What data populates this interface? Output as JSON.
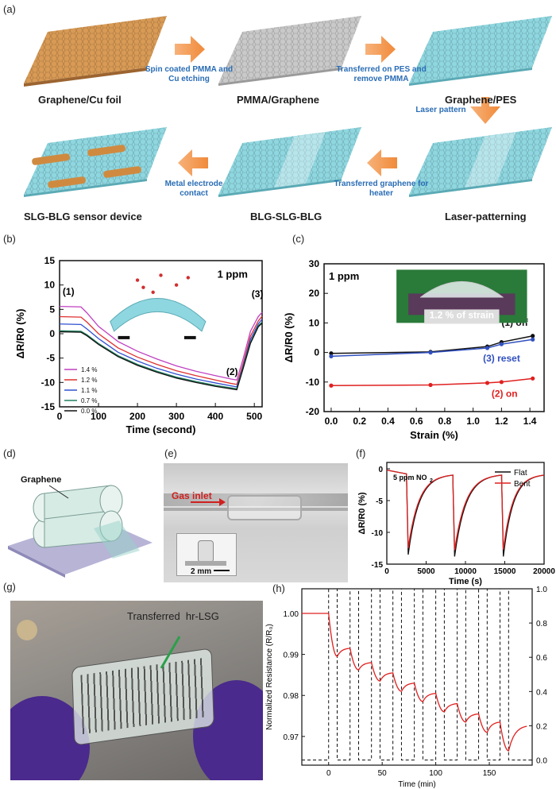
{
  "panel_labels": {
    "a": "(a)",
    "b": "(b)",
    "c": "(c)",
    "d": "(d)",
    "e": "(e)",
    "f": "(f)",
    "g": "(g)",
    "h": "(h)"
  },
  "panel_a": {
    "steps": [
      "Graphene/Cu foil",
      "PMMA/Graphene",
      "Graphene/PES",
      "Laser-patterning",
      "BLG-SLG-BLG",
      "SLG-BLG sensor device"
    ],
    "arrows": [
      "Spin coated PMMA and Cu etching",
      "Transferred on PES and remove PMMA",
      "Laser pattern",
      "Transferred graphene for heater",
      "Metal electrode contact"
    ]
  },
  "panel_b": {
    "conc_label": "1 ppm",
    "markers": [
      "(1)",
      "(2)",
      "(3)"
    ],
    "chart_data": {
      "type": "line",
      "xlabel": "Time (second)",
      "ylabel": "ΔR/R0 (%)",
      "xlim": [
        0,
        520
      ],
      "ylim": [
        -15,
        15
      ],
      "xticks": [
        0,
        100,
        200,
        300,
        400,
        500
      ],
      "yticks": [
        -15,
        -10,
        -5,
        0,
        5,
        10,
        15
      ],
      "x": [
        0,
        55,
        70,
        100,
        150,
        200,
        250,
        300,
        350,
        400,
        440,
        455,
        470,
        490,
        510,
        520
      ],
      "series": [
        {
          "name": "1.4 %",
          "color": "#c040c0",
          "values": [
            5.6,
            5.5,
            4.3,
            1.5,
            -1.6,
            -3.6,
            -5.2,
            -6.6,
            -7.7,
            -8.6,
            -9.3,
            -9.5,
            -5.5,
            0.5,
            3.5,
            4.4
          ]
        },
        {
          "name": "1.2 %",
          "color": "#e03030",
          "values": [
            3.5,
            3.4,
            2.4,
            0.0,
            -2.9,
            -4.8,
            -6.3,
            -7.6,
            -8.6,
            -9.5,
            -10.2,
            -10.4,
            -6.5,
            -0.5,
            2.6,
            3.6
          ]
        },
        {
          "name": "1.1 %",
          "color": "#3050d0",
          "values": [
            2.0,
            1.9,
            1.0,
            -1.0,
            -3.8,
            -5.6,
            -7.1,
            -8.3,
            -9.3,
            -10.1,
            -10.7,
            -10.9,
            -7.0,
            -1.2,
            2.0,
            3.0
          ]
        },
        {
          "name": "0.7 %",
          "color": "#208060",
          "values": [
            0.6,
            0.5,
            -0.2,
            -2.0,
            -4.5,
            -6.3,
            -7.7,
            -8.9,
            -9.8,
            -10.6,
            -11.1,
            -11.3,
            -7.3,
            -1.8,
            1.6,
            2.4
          ]
        },
        {
          "name": "0.0 %",
          "color": "#111111",
          "values": [
            0.4,
            0.3,
            -0.4,
            -2.2,
            -4.7,
            -6.5,
            -7.9,
            -9.1,
            -10.0,
            -10.8,
            -11.3,
            -11.5,
            -7.5,
            -2.0,
            1.4,
            2.2
          ]
        }
      ]
    }
  },
  "panel_c": {
    "conc_label": "1 ppm",
    "photo_caption": "1.2 % of strain",
    "chart_data": {
      "type": "line",
      "xlabel": "Strain (%)",
      "ylabel": "ΔR/R0 (%)",
      "xlim": [
        -0.05,
        1.5
      ],
      "ylim": [
        -20,
        30
      ],
      "xticks": [
        0.0,
        0.2,
        0.4,
        0.6,
        0.8,
        1.0,
        1.2,
        1.4
      ],
      "yticks": [
        -20,
        -10,
        0,
        10,
        20,
        30
      ],
      "x": [
        0.0,
        0.7,
        1.1,
        1.2,
        1.42
      ],
      "series": [
        {
          "name": "(1) off",
          "color": "#111111",
          "values": [
            -0.3,
            0.2,
            2.0,
            3.5,
            5.6
          ]
        },
        {
          "name": "(3) reset",
          "color": "#3050c0",
          "values": [
            -1.3,
            0.0,
            1.5,
            2.8,
            4.4
          ]
        },
        {
          "name": "(2) on",
          "color": "#e02020",
          "values": [
            -11.2,
            -11.0,
            -10.3,
            -10.0,
            -8.8
          ]
        }
      ]
    }
  },
  "panel_d": {
    "label": "Graphene"
  },
  "panel_e": {
    "gas_inlet": "Gas inlet",
    "scale": "2 mm"
  },
  "panel_f": {
    "conc_label": "5 ppm NO",
    "conc_sub": "2",
    "chart_data": {
      "type": "line",
      "xlabel": "Time (s)",
      "ylabel": "ΔR/R0 (%)",
      "xlim": [
        0,
        20000
      ],
      "ylim": [
        -15,
        1
      ],
      "xticks": [
        0,
        5000,
        10000,
        15000,
        20000
      ],
      "yticks": [
        -15,
        -10,
        -5,
        0
      ],
      "series": [
        {
          "name": "Flat",
          "color": "#111111"
        },
        {
          "name": "Bent",
          "color": "#e02020"
        }
      ],
      "cycles": [
        {
          "start": 0,
          "drop": 2600,
          "peak_flat": -13.5,
          "peak_bent": -12.5,
          "recover_to": -1.8
        },
        {
          "start": 2600,
          "drop": 8500,
          "peak_flat": -13.8,
          "peak_bent": -12.8,
          "recover_to": -1.5
        },
        {
          "start": 8500,
          "drop": 14700,
          "peak_flat": -13.8,
          "peak_bent": -12.7,
          "recover_to": -1.2
        },
        {
          "start": 14700,
          "drop": 20000,
          "peak_flat": null,
          "peak_bent": null,
          "recover_to": -0.8
        }
      ]
    }
  },
  "panel_g": {
    "label": "Transferred  hr-LSG"
  },
  "panel_h": {
    "chart_data": {
      "type": "line",
      "xlabel": "Time (min)",
      "ylabel": "Normalized Resistance (R/R₀)",
      "xlim": [
        -25,
        190
      ],
      "ylim": [
        0.963,
        1.006
      ],
      "y2lim": [
        -0.03,
        1.0
      ],
      "xticks": [
        0,
        50,
        100,
        150
      ],
      "yticks": [
        0.97,
        0.98,
        0.99,
        1.0
      ],
      "y2ticks": [
        0.0,
        0.2,
        0.4,
        0.6,
        0.8,
        1.0
      ],
      "pulse_starts": [
        0,
        20,
        40,
        60,
        80,
        100,
        120,
        140,
        160
      ],
      "pulse_width": 8,
      "resistance_points": [
        [
          -25,
          1.0
        ],
        [
          0,
          1.0
        ],
        [
          8,
          0.9895
        ],
        [
          20,
          0.9915
        ],
        [
          28,
          0.9862
        ],
        [
          40,
          0.988
        ],
        [
          48,
          0.9835
        ],
        [
          60,
          0.9855
        ],
        [
          68,
          0.981
        ],
        [
          80,
          0.983
        ],
        [
          88,
          0.9785
        ],
        [
          100,
          0.9805
        ],
        [
          108,
          0.976
        ],
        [
          120,
          0.978
        ],
        [
          128,
          0.9735
        ],
        [
          140,
          0.9755
        ],
        [
          148,
          0.971
        ],
        [
          160,
          0.9735
        ],
        [
          168,
          0.9665
        ],
        [
          185,
          0.9725
        ]
      ]
    }
  }
}
